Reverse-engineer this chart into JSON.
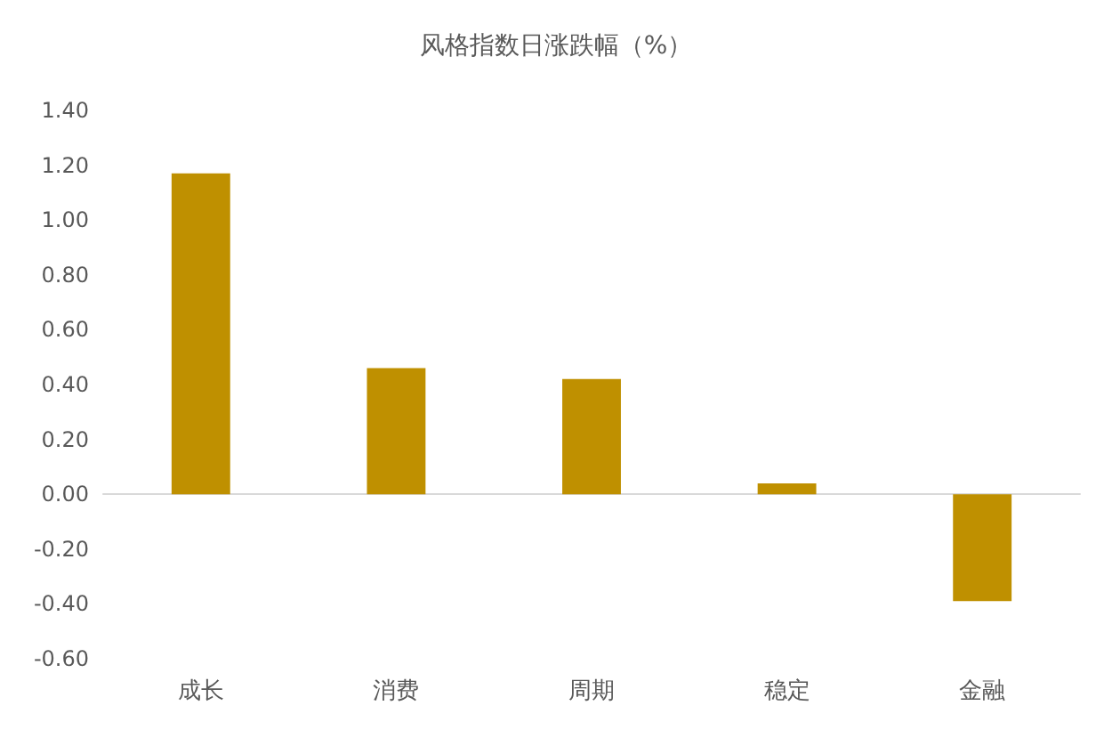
{
  "chart_data": {
    "type": "bar",
    "title": "风格指数日涨跌幅（%）",
    "categories": [
      "成长",
      "消费",
      "周期",
      "稳定",
      "金融"
    ],
    "values": [
      1.17,
      0.46,
      0.42,
      0.04,
      -0.39
    ],
    "color": "#bf9000",
    "ylim": [
      -0.6,
      1.4
    ],
    "yticks": [
      {
        "value": -0.6,
        "label": "-0.60"
      },
      {
        "value": -0.4,
        "label": "-0.40"
      },
      {
        "value": -0.2,
        "label": "-0.20"
      },
      {
        "value": 0,
        "label": "0.00"
      },
      {
        "value": 0.2,
        "label": "0.20"
      },
      {
        "value": 0.4,
        "label": "0.40"
      },
      {
        "value": 0.6,
        "label": "0.60"
      },
      {
        "value": 0.8,
        "label": "0.80"
      },
      {
        "value": 1.0,
        "label": "1.00"
      },
      {
        "value": 1.2,
        "label": "1.20"
      },
      {
        "value": 1.4,
        "label": "1.40"
      }
    ],
    "tick_labels": "xy"
  }
}
